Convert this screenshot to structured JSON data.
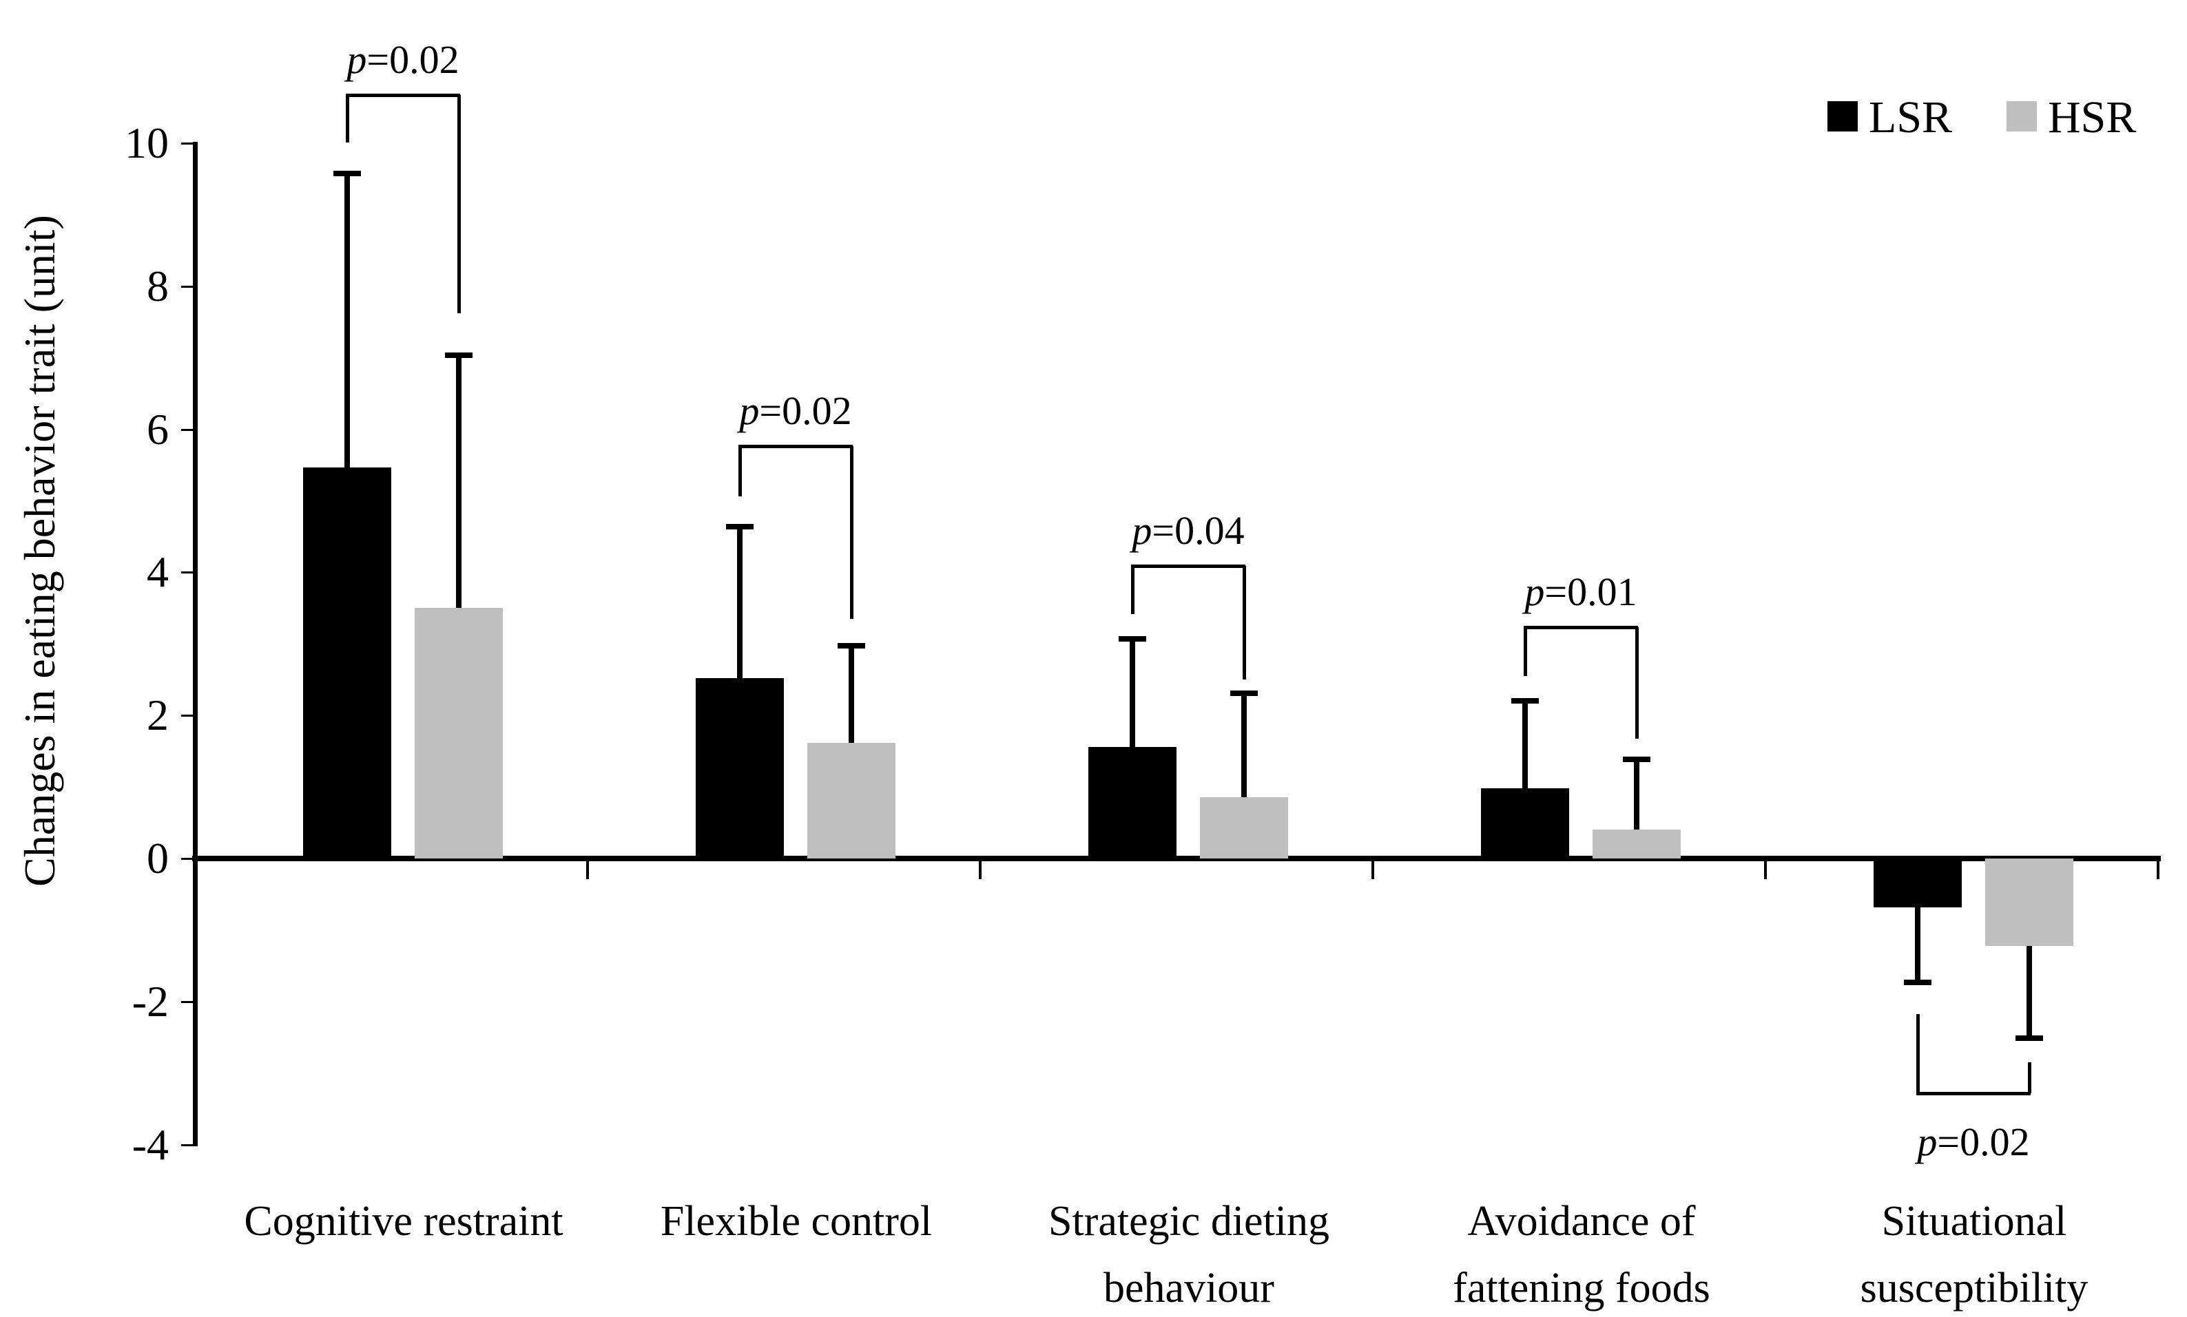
{
  "chart_data": {
    "type": "bar",
    "title": "",
    "xlabel": "",
    "ylabel": "Changes in eating behavior trait (unit)",
    "ylim": [
      -4,
      10
    ],
    "yticks": [
      10,
      8,
      6,
      4,
      2,
      0,
      -2,
      -4
    ],
    "grid": false,
    "categories": [
      "Cognitive restraint",
      "Flexible control",
      "Strategic dieting behaviour",
      "Avoidance of fattening foods",
      "Situational susceptibility"
    ],
    "category_display_lines": [
      "Cognitive restraint",
      "Flexible control",
      "Strategic dieting\nbehaviour",
      "Avoidance of\nfattening foods",
      "Situational\nsusceptibility"
    ],
    "series": [
      {
        "name": "LSR",
        "color": "#000000",
        "values": [
          5.47,
          2.52,
          1.56,
          0.98,
          -0.68
        ],
        "errors": [
          4.11,
          2.12,
          1.51,
          1.22,
          1.05
        ]
      },
      {
        "name": "HSR",
        "color": "#bfbfbf",
        "values": [
          3.5,
          1.62,
          0.86,
          0.4,
          -1.22
        ],
        "errors": [
          3.54,
          1.35,
          1.45,
          0.99,
          1.29
        ]
      }
    ],
    "significance_brackets": [
      {
        "label": "p=0.02",
        "position": "above"
      },
      {
        "label": "p=0.02",
        "position": "above"
      },
      {
        "label": "p=0.04",
        "position": "above"
      },
      {
        "label": "p=0.01",
        "position": "above"
      },
      {
        "label": "p=0.02",
        "position": "below"
      }
    ],
    "legend": {
      "position": "top-right",
      "entries": [
        "LSR",
        "HSR"
      ]
    }
  }
}
